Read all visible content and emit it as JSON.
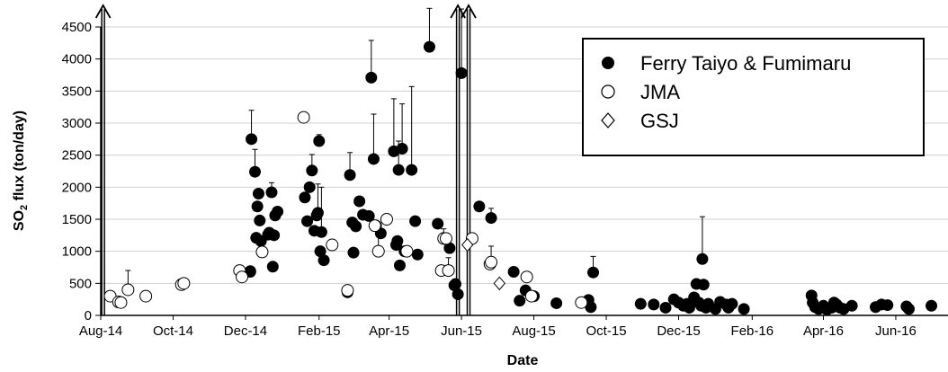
{
  "chart_data": {
    "type": "scatter",
    "title": "",
    "xlabel": "Date",
    "ylabel_parts": [
      "SO",
      "2",
      " flux  (ton/day)"
    ],
    "x_type": "date",
    "xlim": [
      "2014-08-01",
      "2016-07-15"
    ],
    "ylim": [
      0,
      4500
    ],
    "y_ticks": [
      0,
      500,
      1000,
      1500,
      2000,
      2500,
      3000,
      3500,
      4000,
      4500
    ],
    "x_ticks": [
      {
        "date": "2014-08-01",
        "label": "Aug-14"
      },
      {
        "date": "2014-10-01",
        "label": "Oct-14"
      },
      {
        "date": "2014-12-01",
        "label": "Dec-14"
      },
      {
        "date": "2015-02-01",
        "label": "Feb-15"
      },
      {
        "date": "2015-04-01",
        "label": "Apr-15"
      },
      {
        "date": "2015-06-01",
        "label": "Jun-15"
      },
      {
        "date": "2015-08-01",
        "label": "Aug-15"
      },
      {
        "date": "2015-10-01",
        "label": "Oct-15"
      },
      {
        "date": "2015-12-01",
        "label": "Dec-15"
      },
      {
        "date": "2016-02-01",
        "label": "Feb-16"
      },
      {
        "date": "2016-04-01",
        "label": "Apr-16"
      },
      {
        "date": "2016-06-01",
        "label": "Jun-16"
      }
    ],
    "grid": "horizontal",
    "legend_position": "top-right",
    "event_lines": [
      "2014-08-03",
      "2015-05-29",
      "2015-06-07"
    ],
    "series": [
      {
        "name": "Ferry Taiyo & Fumimaru",
        "marker": "filled-circle",
        "color": "#000000",
        "points": [
          {
            "x": "2014-12-05",
            "y": 690
          },
          {
            "x": "2014-12-05",
            "y": 680
          },
          {
            "x": "2014-12-06",
            "y": 2750,
            "err": 450
          },
          {
            "x": "2014-12-09",
            "y": 2240,
            "err": 350
          },
          {
            "x": "2014-12-10",
            "y": 1210
          },
          {
            "x": "2014-12-11",
            "y": 1700
          },
          {
            "x": "2014-12-12",
            "y": 1900
          },
          {
            "x": "2014-12-13",
            "y": 1480
          },
          {
            "x": "2014-12-14",
            "y": 1160
          },
          {
            "x": "2014-12-20",
            "y": 1260
          },
          {
            "x": "2014-12-21",
            "y": 1290
          },
          {
            "x": "2014-12-23",
            "y": 1920,
            "err": 150
          },
          {
            "x": "2014-12-24",
            "y": 760
          },
          {
            "x": "2014-12-25",
            "y": 1250
          },
          {
            "x": "2014-12-26",
            "y": 1560
          },
          {
            "x": "2014-12-28",
            "y": 1620
          },
          {
            "x": "2015-01-20",
            "y": 1840
          },
          {
            "x": "2015-01-22",
            "y": 1470
          },
          {
            "x": "2015-01-24",
            "y": 2000
          },
          {
            "x": "2015-01-26",
            "y": 2260,
            "err": 250
          },
          {
            "x": "2015-01-28",
            "y": 1320
          },
          {
            "x": "2015-01-30",
            "y": 1560
          },
          {
            "x": "2015-01-31",
            "y": 1600,
            "err": 450
          },
          {
            "x": "2015-02-01",
            "y": 2720,
            "err": 100
          },
          {
            "x": "2015-02-02",
            "y": 1000
          },
          {
            "x": "2015-02-03",
            "y": 1300,
            "err": 700
          },
          {
            "x": "2015-02-05",
            "y": 860
          },
          {
            "x": "2015-02-25",
            "y": 360
          },
          {
            "x": "2015-02-27",
            "y": 2190,
            "err": 350
          },
          {
            "x": "2015-03-01",
            "y": 1450
          },
          {
            "x": "2015-03-02",
            "y": 980
          },
          {
            "x": "2015-03-04",
            "y": 1390
          },
          {
            "x": "2015-03-07",
            "y": 1780
          },
          {
            "x": "2015-03-10",
            "y": 1570
          },
          {
            "x": "2015-03-15",
            "y": 1550
          },
          {
            "x": "2015-03-17",
            "y": 3710,
            "err": 580
          },
          {
            "x": "2015-03-19",
            "y": 2440,
            "err": 700
          },
          {
            "x": "2015-03-21",
            "y": 1400
          },
          {
            "x": "2015-03-25",
            "y": 1280
          },
          {
            "x": "2015-04-05",
            "y": 2560,
            "err": 820
          },
          {
            "x": "2015-04-07",
            "y": 1100
          },
          {
            "x": "2015-04-08",
            "y": 1160
          },
          {
            "x": "2015-04-09",
            "y": 2270,
            "err": 450
          },
          {
            "x": "2015-04-10",
            "y": 780
          },
          {
            "x": "2015-04-12",
            "y": 2600,
            "err": 700
          },
          {
            "x": "2015-04-14",
            "y": 1000
          },
          {
            "x": "2015-04-20",
            "y": 2270,
            "err": 1300
          },
          {
            "x": "2015-04-23",
            "y": 1470
          },
          {
            "x": "2015-04-25",
            "y": 950
          },
          {
            "x": "2015-05-05",
            "y": 4190,
            "err": 600
          },
          {
            "x": "2015-05-12",
            "y": 1430
          },
          {
            "x": "2015-05-22",
            "y": 1050
          },
          {
            "x": "2015-05-26",
            "y": 470
          },
          {
            "x": "2015-05-27",
            "y": 490
          },
          {
            "x": "2015-05-29",
            "y": 330
          },
          {
            "x": "2015-06-01",
            "y": 3780,
            "err": 1000
          },
          {
            "x": "2015-06-16",
            "y": 1700
          },
          {
            "x": "2015-06-26",
            "y": 1520,
            "err": 150
          },
          {
            "x": "2015-07-15",
            "y": 680
          },
          {
            "x": "2015-07-20",
            "y": 230
          },
          {
            "x": "2015-07-25",
            "y": 390
          },
          {
            "x": "2015-08-01",
            "y": 300
          },
          {
            "x": "2015-08-20",
            "y": 190
          },
          {
            "x": "2015-09-16",
            "y": 240
          },
          {
            "x": "2015-09-18",
            "y": 130
          },
          {
            "x": "2015-09-20",
            "y": 670,
            "err": 250
          },
          {
            "x": "2015-10-30",
            "y": 180
          },
          {
            "x": "2015-11-10",
            "y": 170
          },
          {
            "x": "2015-11-20",
            "y": 120
          },
          {
            "x": "2015-11-27",
            "y": 250
          },
          {
            "x": "2015-12-01",
            "y": 200
          },
          {
            "x": "2015-12-05",
            "y": 150
          },
          {
            "x": "2015-12-08",
            "y": 180
          },
          {
            "x": "2015-12-10",
            "y": 120
          },
          {
            "x": "2015-12-14",
            "y": 280
          },
          {
            "x": "2015-12-16",
            "y": 490
          },
          {
            "x": "2015-12-18",
            "y": 200
          },
          {
            "x": "2015-12-20",
            "y": 150
          },
          {
            "x": "2015-12-21",
            "y": 880,
            "err": 660
          },
          {
            "x": "2015-12-22",
            "y": 480
          },
          {
            "x": "2015-12-24",
            "y": 120
          },
          {
            "x": "2015-12-26",
            "y": 180
          },
          {
            "x": "2016-01-01",
            "y": 100
          },
          {
            "x": "2016-01-05",
            "y": 210
          },
          {
            "x": "2016-01-10",
            "y": 170
          },
          {
            "x": "2016-01-12",
            "y": 120
          },
          {
            "x": "2016-01-15",
            "y": 180
          },
          {
            "x": "2016-01-25",
            "y": 100
          },
          {
            "x": "2016-03-22",
            "y": 310
          },
          {
            "x": "2016-03-23",
            "y": 200
          },
          {
            "x": "2016-03-25",
            "y": 130
          },
          {
            "x": "2016-03-28",
            "y": 100
          },
          {
            "x": "2016-04-01",
            "y": 150
          },
          {
            "x": "2016-04-04",
            "y": 90
          },
          {
            "x": "2016-04-08",
            "y": 120
          },
          {
            "x": "2016-04-10",
            "y": 200
          },
          {
            "x": "2016-04-12",
            "y": 170
          },
          {
            "x": "2016-04-15",
            "y": 120
          },
          {
            "x": "2016-04-18",
            "y": 100
          },
          {
            "x": "2016-04-25",
            "y": 150
          },
          {
            "x": "2016-05-15",
            "y": 130
          },
          {
            "x": "2016-05-20",
            "y": 170
          },
          {
            "x": "2016-05-25",
            "y": 160
          },
          {
            "x": "2016-06-10",
            "y": 140
          },
          {
            "x": "2016-06-12",
            "y": 100
          },
          {
            "x": "2016-07-01",
            "y": 150
          }
        ]
      },
      {
        "name": "JMA",
        "marker": "open-circle",
        "color": "#000000",
        "points": [
          {
            "x": "2014-08-09",
            "y": 300
          },
          {
            "x": "2014-08-16",
            "y": 210
          },
          {
            "x": "2014-08-18",
            "y": 200
          },
          {
            "x": "2014-08-24",
            "y": 400,
            "err": 300
          },
          {
            "x": "2014-09-08",
            "y": 300
          },
          {
            "x": "2014-10-08",
            "y": 480
          },
          {
            "x": "2014-10-10",
            "y": 500
          },
          {
            "x": "2014-11-26",
            "y": 700
          },
          {
            "x": "2014-11-28",
            "y": 600,
            "err": 150
          },
          {
            "x": "2014-12-15",
            "y": 990
          },
          {
            "x": "2015-01-19",
            "y": 3090
          },
          {
            "x": "2015-02-12",
            "y": 1100
          },
          {
            "x": "2015-02-25",
            "y": 390
          },
          {
            "x": "2015-03-20",
            "y": 1400
          },
          {
            "x": "2015-03-23",
            "y": 1000,
            "err": 400
          },
          {
            "x": "2015-03-30",
            "y": 1500
          },
          {
            "x": "2015-04-16",
            "y": 1000
          },
          {
            "x": "2015-05-15",
            "y": 700
          },
          {
            "x": "2015-05-17",
            "y": 1200,
            "err": 150
          },
          {
            "x": "2015-05-19",
            "y": 1200
          },
          {
            "x": "2015-05-21",
            "y": 700,
            "err": 200
          },
          {
            "x": "2015-06-10",
            "y": 1200
          },
          {
            "x": "2015-06-25",
            "y": 800
          },
          {
            "x": "2015-06-26",
            "y": 830,
            "err": 250
          },
          {
            "x": "2015-07-26",
            "y": 600
          },
          {
            "x": "2015-07-30",
            "y": 300
          },
          {
            "x": "2015-09-10",
            "y": 200
          }
        ]
      },
      {
        "name": "GSJ",
        "marker": "open-diamond",
        "color": "#000000",
        "points": [
          {
            "x": "2015-06-06",
            "y": 1100
          },
          {
            "x": "2015-07-03",
            "y": 500
          }
        ]
      }
    ]
  }
}
